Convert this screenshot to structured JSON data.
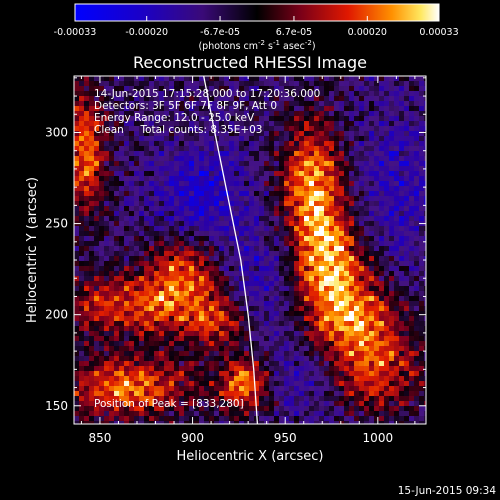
{
  "chart_data": {
    "type": "heatmap",
    "title": "Reconstructed RHESSI Image",
    "xlabel": "Heliocentric X (arcsec)",
    "ylabel": "Heliocentric Y (arcsec)",
    "xlim": [
      836,
      1026
    ],
    "ylim": [
      140,
      331
    ],
    "x_ticks": [
      850,
      900,
      950,
      1000
    ],
    "y_ticks": [
      150,
      200,
      250,
      300
    ],
    "grid": false,
    "colorbar": {
      "position": "top",
      "range": [
        -0.00033,
        0.00033
      ],
      "tick_values": [
        -0.00033,
        -0.0002,
        -6.7e-05,
        6.7e-05,
        0.0002,
        0.00033
      ],
      "tick_labels": [
        "-0.00033",
        "-0.00020",
        "-6.7e-05",
        "6.7e-05",
        "0.00020",
        "0.00033"
      ],
      "unit_label": "(photons cm",
      "unit_exp1": "-2",
      "unit_mid": " s",
      "unit_exp2": "-1",
      "unit_end": " asec",
      "unit_exp3": "-2",
      "unit_close": ")"
    },
    "annotations": [
      "14-Jun-2015 17:15:28.000 to 17:20:36.000",
      "Detectors: 3F 5F 6F 7F 8F 9F, Att 0",
      "Energy Range: 12.0 - 25.0 keV",
      "Clean     Total counts: 8.35E+03"
    ],
    "peak_annotation": "Position of Peak = [833,280]",
    "limb_curve": [
      [
        906,
        331
      ],
      [
        912,
        300
      ],
      [
        920,
        260
      ],
      [
        926,
        230
      ],
      [
        930,
        200
      ],
      [
        933,
        170
      ],
      [
        935,
        140
      ]
    ],
    "bright_regions": [
      {
        "x": 965,
        "y": 270,
        "sx": 12,
        "sy": 25,
        "amp": 1.0
      },
      {
        "x": 975,
        "y": 225,
        "sx": 14,
        "sy": 20,
        "amp": 0.9
      },
      {
        "x": 990,
        "y": 195,
        "sx": 18,
        "sy": 16,
        "amp": 0.8
      },
      {
        "x": 1000,
        "y": 165,
        "sx": 18,
        "sy": 14,
        "amp": 0.6
      },
      {
        "x": 842,
        "y": 290,
        "sx": 8,
        "sy": 25,
        "amp": 0.85
      },
      {
        "x": 870,
        "y": 205,
        "sx": 30,
        "sy": 12,
        "amp": 0.75
      },
      {
        "x": 895,
        "y": 225,
        "sx": 14,
        "sy": 14,
        "amp": 0.7
      },
      {
        "x": 865,
        "y": 160,
        "sx": 25,
        "sy": 12,
        "amp": 0.85
      },
      {
        "x": 928,
        "y": 162,
        "sx": 10,
        "sy": 10,
        "amp": 0.9
      },
      {
        "x": 915,
        "y": 195,
        "sx": 12,
        "sy": 10,
        "amp": 0.6
      }
    ],
    "dark_regions": [
      {
        "x": 905,
        "y": 265,
        "sx": 18,
        "sy": 20,
        "amp": 0.8
      },
      {
        "x": 935,
        "y": 215,
        "sx": 14,
        "sy": 22,
        "amp": 0.6
      },
      {
        "x": 1010,
        "y": 270,
        "sx": 16,
        "sy": 30,
        "amp": 0.6
      },
      {
        "x": 960,
        "y": 165,
        "sx": 14,
        "sy": 14,
        "amp": 0.5
      }
    ]
  },
  "footer": {
    "timestamp": "15-Jun-2015 09:34"
  }
}
